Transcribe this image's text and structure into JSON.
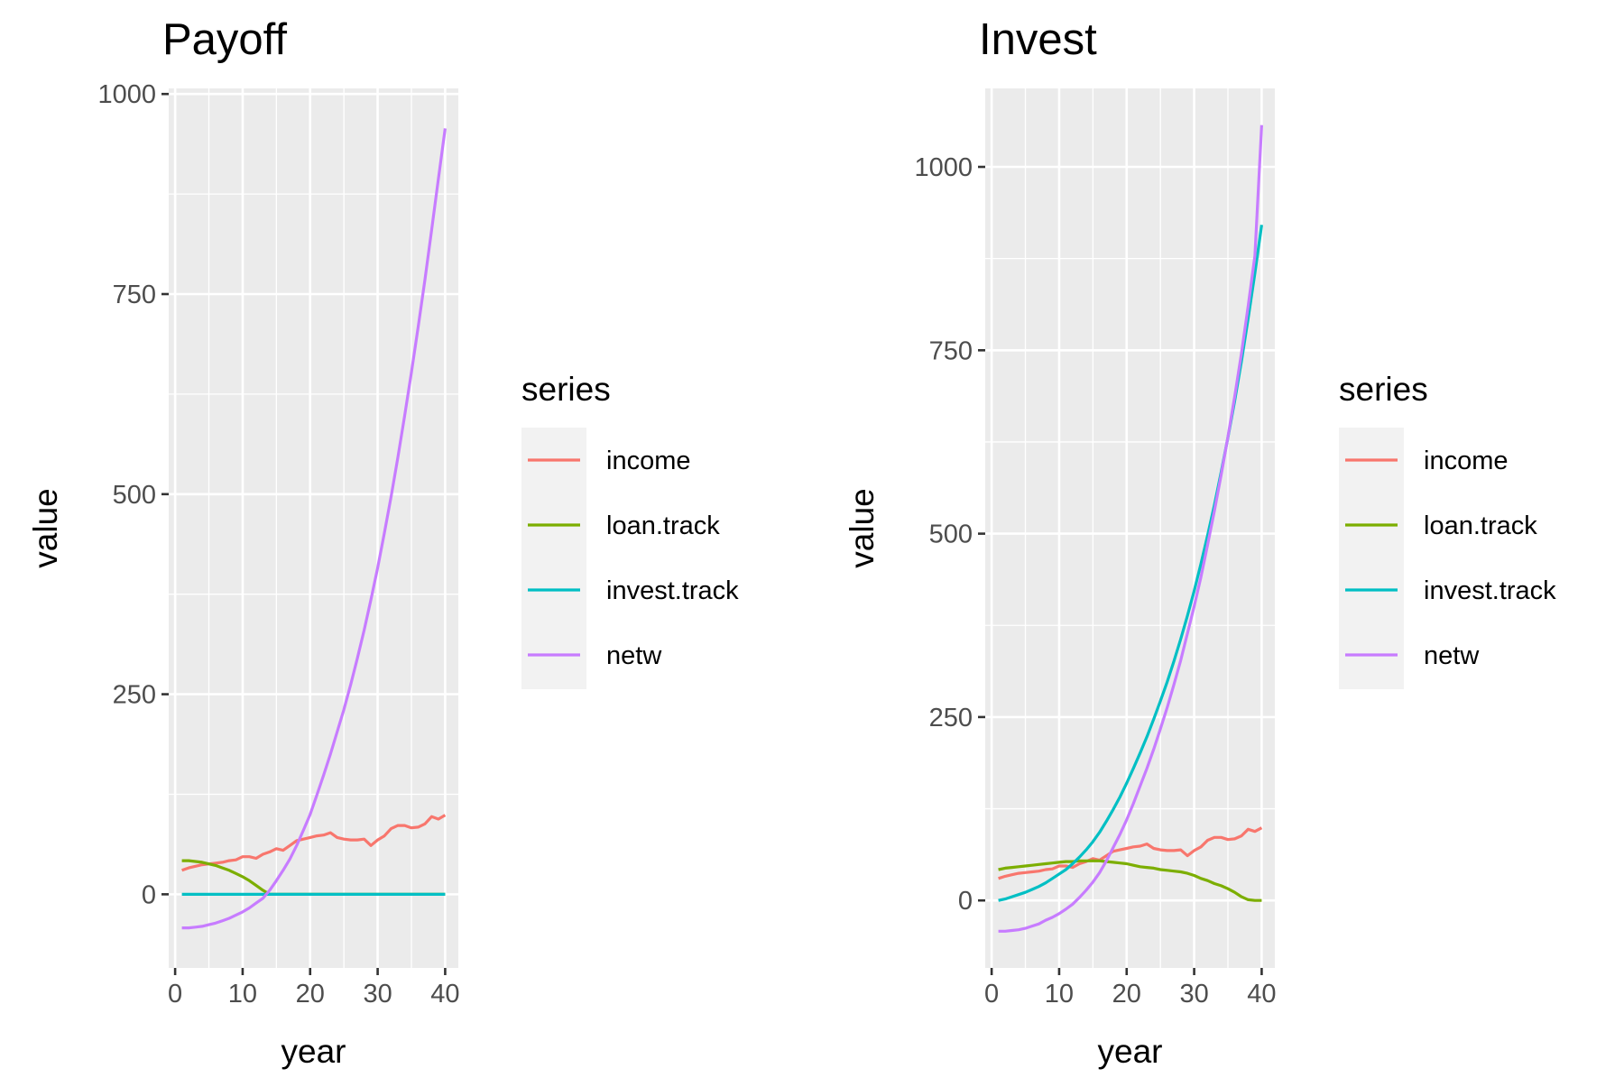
{
  "colors": {
    "income": "#F8766D",
    "loan.track": "#7CAE00",
    "invest.track": "#00BFC4",
    "netw": "#C77CFF",
    "panel_bg": "#EBEBEB",
    "grid": "#FFFFFF"
  },
  "chart_data": [
    {
      "type": "line",
      "title": "Payoff",
      "xlabel": "year",
      "ylabel": "value",
      "xlim": [
        -0.95,
        41.95
      ],
      "ylim": [
        -92,
        1007
      ],
      "x_ticks": [
        0,
        10,
        20,
        30,
        40
      ],
      "y_ticks": [
        0,
        250,
        500,
        750,
        1000
      ],
      "grid": true,
      "legend": {
        "title": "series",
        "position": "right"
      },
      "x": [
        1,
        2,
        3,
        4,
        5,
        6,
        7,
        8,
        9,
        10,
        11,
        12,
        13,
        14,
        15,
        16,
        17,
        18,
        19,
        20,
        21,
        22,
        23,
        24,
        25,
        26,
        27,
        28,
        29,
        30,
        31,
        32,
        33,
        34,
        35,
        36,
        37,
        38,
        39,
        40
      ],
      "series": [
        {
          "name": "income",
          "values": [
            30,
            33,
            35,
            37,
            38,
            39,
            40,
            42,
            43,
            47,
            47,
            45,
            50,
            53,
            57,
            55,
            61,
            67,
            69,
            71,
            73,
            74,
            77,
            71,
            69,
            68,
            68,
            69,
            61,
            68,
            73,
            82,
            86,
            86,
            83,
            84,
            88,
            97,
            94,
            99
          ]
        },
        {
          "name": "loan.track",
          "values": [
            42,
            42,
            41,
            40,
            38,
            36,
            33,
            30,
            26,
            22,
            17,
            11,
            5,
            0,
            0,
            0,
            0,
            0,
            0,
            0,
            0,
            0,
            0,
            0,
            0,
            0,
            0,
            0,
            0,
            0,
            0,
            0,
            0,
            0,
            0,
            0,
            0,
            0,
            0,
            0
          ]
        },
        {
          "name": "invest.track",
          "values": [
            0,
            0,
            0,
            0,
            0,
            0,
            0,
            0,
            0,
            0,
            0,
            0,
            0,
            0,
            0,
            0,
            0,
            0,
            0,
            0,
            0,
            0,
            0,
            0,
            0,
            0,
            0,
            0,
            0,
            0,
            0,
            0,
            0,
            0,
            0,
            0,
            0,
            0,
            0,
            0
          ]
        },
        {
          "name": "netw",
          "values": [
            -42,
            -42,
            -41,
            -40,
            -38,
            -36,
            -33,
            -30,
            -26,
            -22,
            -17,
            -11,
            -5,
            5,
            17,
            30,
            44,
            61,
            80,
            100,
            124,
            149,
            175,
            203,
            231,
            262,
            295,
            330,
            368,
            408,
            452,
            497,
            546,
            598,
            652,
            709,
            768,
            830,
            894,
            957
          ]
        }
      ]
    },
    {
      "type": "line",
      "title": "Invest",
      "xlabel": "year",
      "ylabel": "value",
      "xlim": [
        -0.95,
        41.95
      ],
      "ylim": [
        -92,
        1107
      ],
      "x_ticks": [
        0,
        10,
        20,
        30,
        40
      ],
      "y_ticks": [
        0,
        250,
        500,
        750,
        1000
      ],
      "grid": true,
      "legend": {
        "title": "series",
        "position": "right"
      },
      "x": [
        1,
        2,
        3,
        4,
        5,
        6,
        7,
        8,
        9,
        10,
        11,
        12,
        13,
        14,
        15,
        16,
        17,
        18,
        19,
        20,
        21,
        22,
        23,
        24,
        25,
        26,
        27,
        28,
        29,
        30,
        31,
        32,
        33,
        34,
        35,
        36,
        37,
        38,
        39,
        40
      ],
      "series": [
        {
          "name": "income",
          "values": [
            30,
            33,
            35,
            37,
            38,
            39,
            40,
            42,
            43,
            47,
            47,
            45,
            50,
            53,
            57,
            55,
            61,
            67,
            69,
            71,
            73,
            74,
            77,
            71,
            69,
            68,
            68,
            69,
            61,
            68,
            73,
            82,
            86,
            86,
            83,
            84,
            88,
            97,
            94,
            99
          ]
        },
        {
          "name": "loan.track",
          "values": [
            42,
            44,
            45,
            46,
            47,
            48,
            49,
            50,
            51,
            52,
            53,
            53,
            54,
            54,
            54,
            54,
            53,
            52,
            51,
            50,
            48,
            46,
            45,
            44,
            42,
            41,
            40,
            39,
            37,
            34,
            30,
            27,
            23,
            20,
            16,
            11,
            5,
            1,
            0,
            0
          ]
        },
        {
          "name": "invest.track",
          "values": [
            0,
            2,
            5,
            8,
            11,
            15,
            19,
            24,
            30,
            36,
            42,
            50,
            59,
            69,
            80,
            93,
            108,
            124,
            141,
            160,
            180,
            201,
            223,
            247,
            272,
            298,
            326,
            356,
            388,
            422,
            459,
            498,
            539,
            584,
            631,
            681,
            735,
            793,
            855,
            921
          ]
        },
        {
          "name": "netw",
          "values": [
            -42,
            -42,
            -41,
            -40,
            -38,
            -35,
            -32,
            -27,
            -23,
            -18,
            -12,
            -5,
            4,
            14,
            25,
            38,
            54,
            72,
            90,
            110,
            132,
            156,
            180,
            206,
            234,
            263,
            294,
            327,
            364,
            401,
            441,
            485,
            531,
            580,
            632,
            687,
            746,
            810,
            879,
            1057
          ]
        }
      ]
    }
  ]
}
